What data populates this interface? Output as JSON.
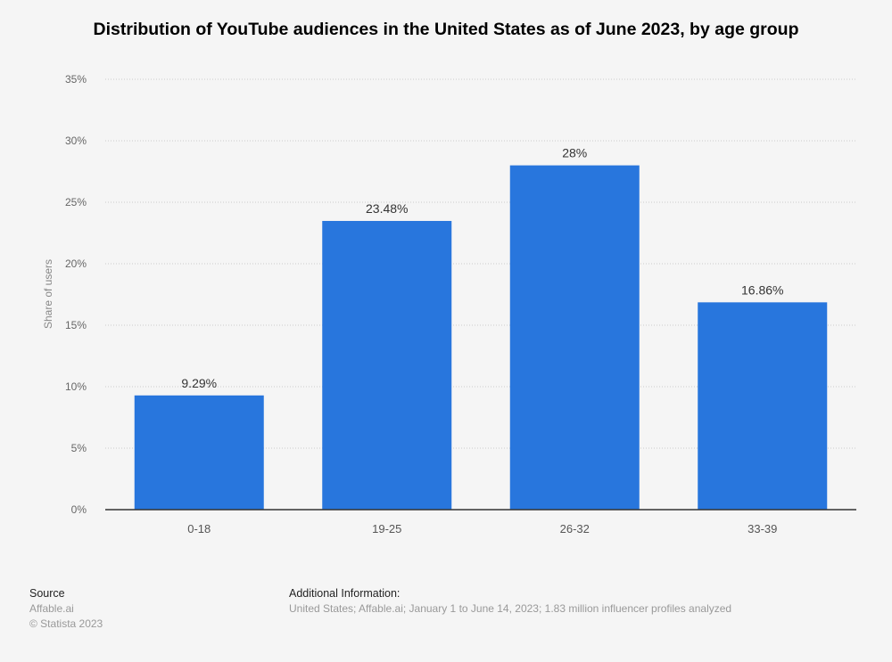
{
  "chart_data": {
    "type": "bar",
    "title": "Distribution of YouTube audiences in the United States as of June 2023, by age group",
    "xlabel": "",
    "ylabel": "Share of users",
    "categories": [
      "0-18",
      "19-25",
      "26-32",
      "33-39"
    ],
    "values": [
      9.29,
      23.48,
      28,
      16.86
    ],
    "data_labels": [
      "9.29%",
      "23.48%",
      "28%",
      "16.86%"
    ],
    "ylim": [
      0,
      35
    ],
    "yticks": [
      0,
      5,
      10,
      15,
      20,
      25,
      30,
      35
    ],
    "ytick_format": "%",
    "grid": true,
    "bar_color": "#2876dd"
  },
  "footer": {
    "source_label": "Source",
    "source": "Affable.ai",
    "copyright": "© Statista 2023",
    "additional_label": "Additional Information:",
    "additional": "United States; Affable.ai; January 1 to June 14, 2023; 1.83 million influencer profiles analyzed"
  }
}
